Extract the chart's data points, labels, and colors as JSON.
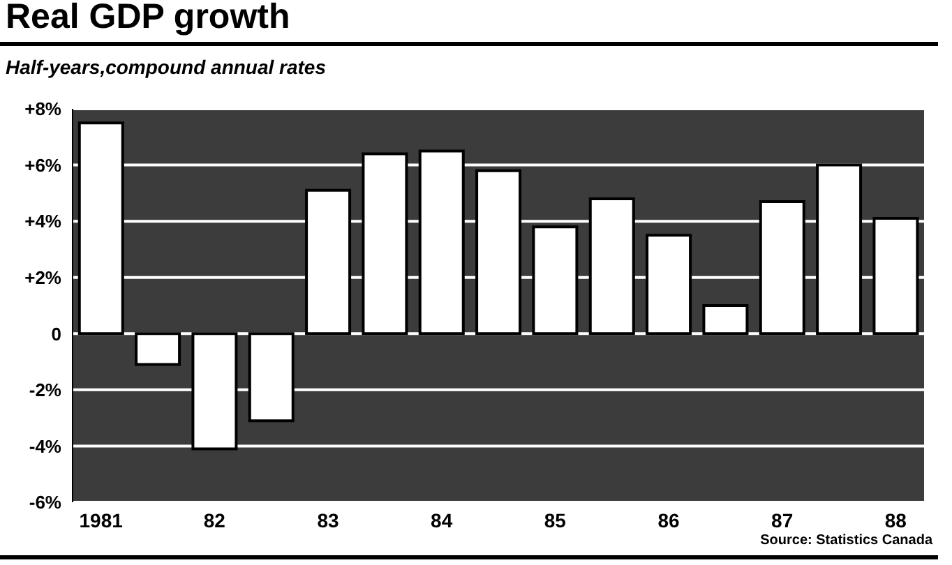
{
  "chart_data": {
    "type": "bar",
    "title": "Real GDP growth",
    "subtitle": "Half-years,compound annual rates",
    "categories": [
      "1981",
      null,
      "82",
      null,
      "83",
      null,
      "84",
      null,
      "85",
      null,
      "86",
      null,
      "87",
      null,
      "88"
    ],
    "values": [
      7.5,
      -1.1,
      -4.1,
      -3.1,
      5.1,
      6.4,
      6.5,
      5.8,
      3.8,
      4.8,
      3.5,
      1.0,
      4.7,
      6.0,
      4.1
    ],
    "color": "#ffffff",
    "ylim": [
      -6,
      8
    ],
    "yticks": [
      {
        "value": -6,
        "label": "-6%"
      },
      {
        "value": -4,
        "label": "-4%"
      },
      {
        "value": -2,
        "label": "-2%"
      },
      0,
      {
        "value": 2,
        "label": "+2%"
      },
      {
        "value": 4,
        "label": "+4%"
      },
      {
        "value": 6,
        "label": "+6%"
      },
      {
        "value": 8,
        "label": "+8%"
      }
    ],
    "grid": "y",
    "annotations": [
      "Source: Statistics Canada"
    ]
  }
}
